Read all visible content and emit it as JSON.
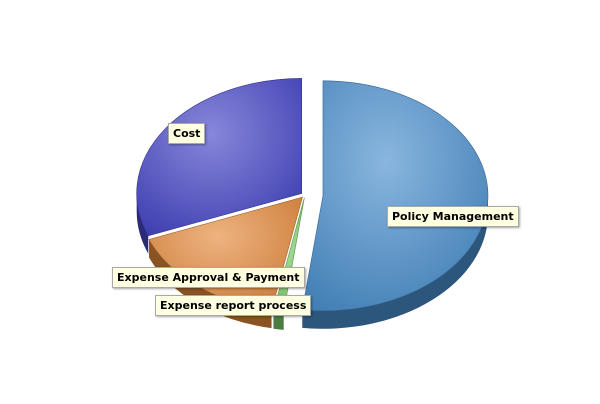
{
  "chart_data": {
    "type": "pie",
    "title": "",
    "style": "3d-exploded",
    "slices": [
      {
        "label": "Policy Management",
        "value": 52.0,
        "color": "#4a8fcd"
      },
      {
        "label": "Expense report process",
        "value": 1.0,
        "color": "#7fd06a"
      },
      {
        "label": "Expense Approval & Payment",
        "value": 16.0,
        "color": "#e58a3c"
      },
      {
        "label": "Cost",
        "value": 31.0,
        "color": "#4646c8"
      }
    ]
  }
}
